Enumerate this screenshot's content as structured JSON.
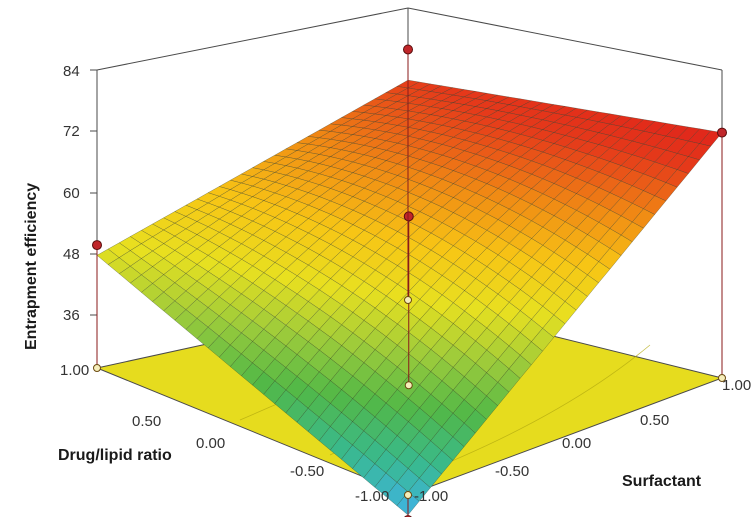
{
  "chart_data": {
    "type": "surface3d",
    "zlabel": "Entrapment efficiency",
    "xlabel": "Drug/lipid ratio",
    "ylabel": "Surfactant",
    "zlim": [
      30,
      84
    ],
    "z_ticks": [
      "84",
      "72",
      "60",
      "48",
      "36"
    ],
    "x_ticks": [
      "1.00",
      "0.50",
      "0.00",
      "-0.50",
      "-1.00"
    ],
    "y_ticks": [
      "-1.00",
      "-0.50",
      "0.00",
      "0.50",
      "1.00"
    ],
    "surface_corners": {
      "drug_-1_surf_-1": 30,
      "drug_1_surf_-1": 56,
      "drug_-1_surf_1": 82,
      "drug_1_surf_1": 77,
      "center": 66
    },
    "design_points": [
      {
        "drug_lipid_ratio": -1.0,
        "surfactant": -1.0,
        "entrapment": 29
      },
      {
        "drug_lipid_ratio": 1.0,
        "surfactant": -1.0,
        "entrapment": 58
      },
      {
        "drug_lipid_ratio": 0.0,
        "surfactant": 0.0,
        "entrapment": 67
      },
      {
        "drug_lipid_ratio": -1.0,
        "surfactant": 1.0,
        "entrapment": 82
      },
      {
        "drug_lipid_ratio": 1.0,
        "surfactant": 1.0,
        "entrapment": 83
      }
    ],
    "colormap": [
      "#3fb3e8",
      "#39b98c",
      "#52b847",
      "#9ccb3b",
      "#e8e020",
      "#f7c515",
      "#f08a14",
      "#e53a1a",
      "#de1b1b"
    ],
    "floor_color": "#e6dc1e",
    "grid": false
  }
}
